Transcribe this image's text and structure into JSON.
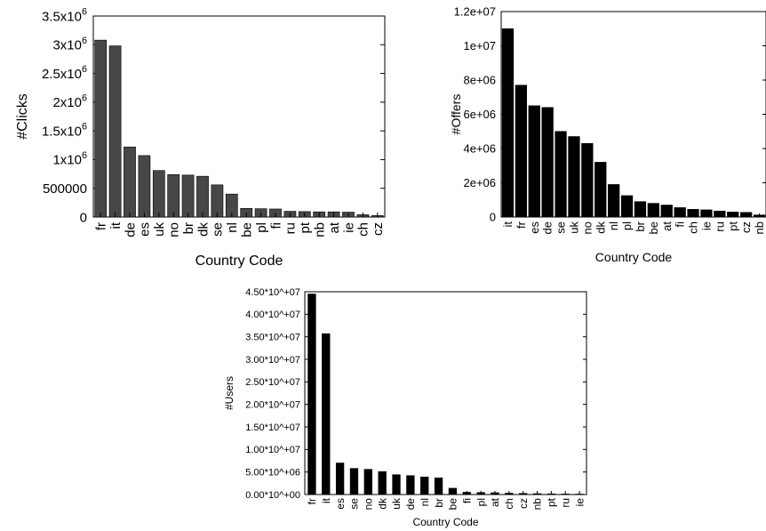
{
  "chart_data": [
    {
      "type": "bar",
      "xlabel": "Country Code",
      "ylabel": "#Clicks",
      "ylim": [
        0,
        3500000
      ],
      "yticks": [
        {
          "value": 0,
          "text": "0",
          "sup": ""
        },
        {
          "value": 500000,
          "text": "500000",
          "sup": ""
        },
        {
          "value": 1000000,
          "text": "1x10",
          "sup": "6"
        },
        {
          "value": 1500000,
          "text": "1.5x10",
          "sup": "6"
        },
        {
          "value": 2000000,
          "text": "2x10",
          "sup": "6"
        },
        {
          "value": 2500000,
          "text": "2.5x10",
          "sup": "6"
        },
        {
          "value": 3000000,
          "text": "3x10",
          "sup": "6"
        },
        {
          "value": 3500000,
          "text": "3.5x10",
          "sup": "6"
        }
      ],
      "categories": [
        "fr",
        "it",
        "de",
        "es",
        "uk",
        "no",
        "br",
        "dk",
        "se",
        "nl",
        "be",
        "pl",
        "fi",
        "ru",
        "pt",
        "nb",
        "at",
        "ie",
        "ch",
        "cz"
      ],
      "values": [
        3080000,
        2980000,
        1220000,
        1070000,
        810000,
        740000,
        730000,
        710000,
        560000,
        400000,
        150000,
        145000,
        140000,
        100000,
        95000,
        90000,
        90000,
        85000,
        40000,
        25000
      ],
      "bar_color": "#474747",
      "grid": false
    },
    {
      "type": "bar",
      "xlabel": "Country Code",
      "ylabel": "#Offers",
      "ylim": [
        0,
        12000000
      ],
      "yticks": [
        {
          "value": 0,
          "text": "0",
          "sup": ""
        },
        {
          "value": 2000000,
          "text": "2e+06",
          "sup": ""
        },
        {
          "value": 4000000,
          "text": "4e+06",
          "sup": ""
        },
        {
          "value": 6000000,
          "text": "6e+06",
          "sup": ""
        },
        {
          "value": 8000000,
          "text": "8e+06",
          "sup": ""
        },
        {
          "value": 10000000,
          "text": "1e+07",
          "sup": ""
        },
        {
          "value": 12000000,
          "text": "1.2e+07",
          "sup": ""
        }
      ],
      "categories": [
        "it",
        "fr",
        "es",
        "de",
        "se",
        "uk",
        "no",
        "dk",
        "nl",
        "pl",
        "br",
        "be",
        "at",
        "fi",
        "ch",
        "ie",
        "ru",
        "pt",
        "cz",
        "nb"
      ],
      "values": [
        11000000,
        7700000,
        6500000,
        6400000,
        5000000,
        4700000,
        4300000,
        3200000,
        1900000,
        1250000,
        900000,
        800000,
        700000,
        550000,
        450000,
        420000,
        350000,
        290000,
        270000,
        120000
      ],
      "bar_color": "#000000",
      "grid": false
    },
    {
      "type": "bar",
      "xlabel": "Country Code",
      "ylabel": "#Users",
      "ylim": [
        0,
        45000000
      ],
      "yticks": [
        {
          "value": 0,
          "text": "0.00*10^+00",
          "sup": ""
        },
        {
          "value": 5000000,
          "text": "5.00*10^+06",
          "sup": ""
        },
        {
          "value": 10000000,
          "text": "1.00*10^+07",
          "sup": ""
        },
        {
          "value": 15000000,
          "text": "1.50*10^+07",
          "sup": ""
        },
        {
          "value": 20000000,
          "text": "2.00*10^+07",
          "sup": ""
        },
        {
          "value": 25000000,
          "text": "2.50*10^+07",
          "sup": ""
        },
        {
          "value": 30000000,
          "text": "3.00*10^+07",
          "sup": ""
        },
        {
          "value": 35000000,
          "text": "3.50*10^+07",
          "sup": ""
        },
        {
          "value": 40000000,
          "text": "4.00*10^+07",
          "sup": ""
        },
        {
          "value": 45000000,
          "text": "4.50*10^+07",
          "sup": ""
        }
      ],
      "categories": [
        "fr",
        "it",
        "es",
        "se",
        "no",
        "dk",
        "uk",
        "de",
        "nl",
        "br",
        "be",
        "fi",
        "pl",
        "at",
        "ch",
        "cz",
        "nb",
        "pt",
        "ru",
        "ie"
      ],
      "values": [
        44500000,
        35700000,
        7000000,
        5800000,
        5600000,
        5100000,
        4400000,
        4200000,
        3900000,
        3700000,
        1400000,
        500000,
        450000,
        400000,
        300000,
        250000,
        200000,
        150000,
        120000,
        100000
      ],
      "bar_color": "#000000",
      "grid": false
    }
  ]
}
